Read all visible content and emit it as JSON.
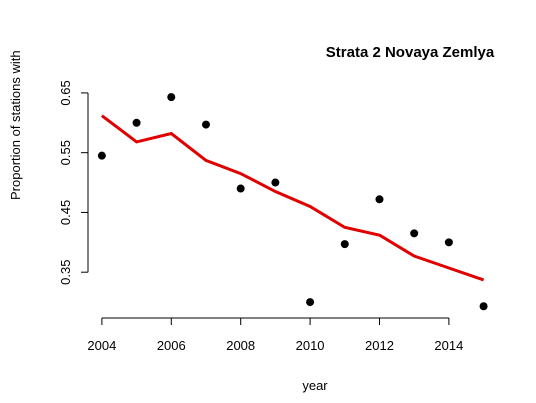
{
  "chart_data": {
    "type": "scatter_line",
    "title": "Strata 2 Novaya Zemlya",
    "x_label": "year",
    "y_label": "Proportion of stations with",
    "x": [
      2004,
      2005,
      2006,
      2007,
      2008,
      2009,
      2010,
      2011,
      2012,
      2013,
      2014,
      2015
    ],
    "series": [
      {
        "type": "scatter",
        "color": "#000000",
        "values": [
          0.545,
          0.6,
          0.643,
          0.597,
          0.49,
          0.5,
          0.3,
          0.397,
          0.472,
          0.415,
          0.4,
          0.293
        ]
      },
      {
        "type": "line",
        "color": "#e00000",
        "values": [
          0.612,
          0.568,
          0.582,
          0.537,
          0.515,
          0.485,
          0.46,
          0.425,
          0.412,
          0.377,
          0.357,
          0.337
        ]
      }
    ],
    "xlim": [
      2003.6,
      2015.3
    ],
    "xticks": [
      2004,
      2006,
      2008,
      2010,
      2012,
      2014
    ],
    "ylim": [
      0.27,
      0.68
    ],
    "yticks": [
      0.35,
      0.45,
      0.55,
      0.65
    ]
  }
}
